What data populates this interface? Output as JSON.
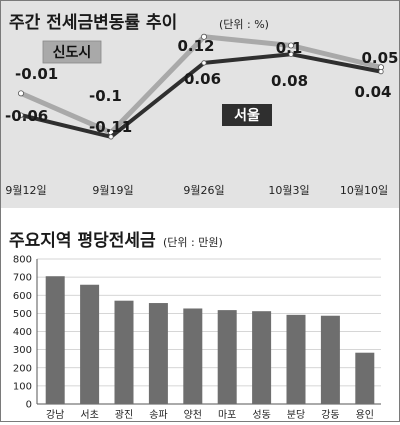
{
  "chart_data": [
    {
      "type": "line",
      "title": "주간 전세금변동률 추이",
      "unit": "(단위 : %)",
      "categories": [
        "9월12일",
        "9월19일",
        "9월26일",
        "10월3일",
        "10월10일"
      ],
      "series": [
        {
          "name": "신도시",
          "values": [
            -0.01,
            -0.1,
            0.12,
            0.1,
            0.05
          ],
          "value_labels": [
            "-0.01",
            "-0.1",
            "0.12",
            "0.1",
            "0.05"
          ],
          "color": "#a9a9a9"
        },
        {
          "name": "서울",
          "values": [
            -0.06,
            -0.11,
            0.06,
            0.08,
            0.04
          ],
          "value_labels": [
            "-0.06",
            "-0.11",
            "0.06",
            "0.08",
            "0.04"
          ],
          "color": "#2f2f2f"
        }
      ]
    },
    {
      "type": "bar",
      "title": "주요지역 평당전세금",
      "unit": "(단위 : 만원)",
      "categories": [
        "강남",
        "서초",
        "광진",
        "송파",
        "양천",
        "마포",
        "성동",
        "분당",
        "강동",
        "용인"
      ],
      "values": [
        705,
        658,
        570,
        557,
        527,
        518,
        512,
        492,
        487,
        283
      ],
      "ylim": [
        0,
        800
      ],
      "yticks": [
        0,
        100,
        200,
        300,
        400,
        500,
        600,
        700,
        800
      ],
      "grid": true,
      "bar_color": "#6e6e6e"
    }
  ]
}
